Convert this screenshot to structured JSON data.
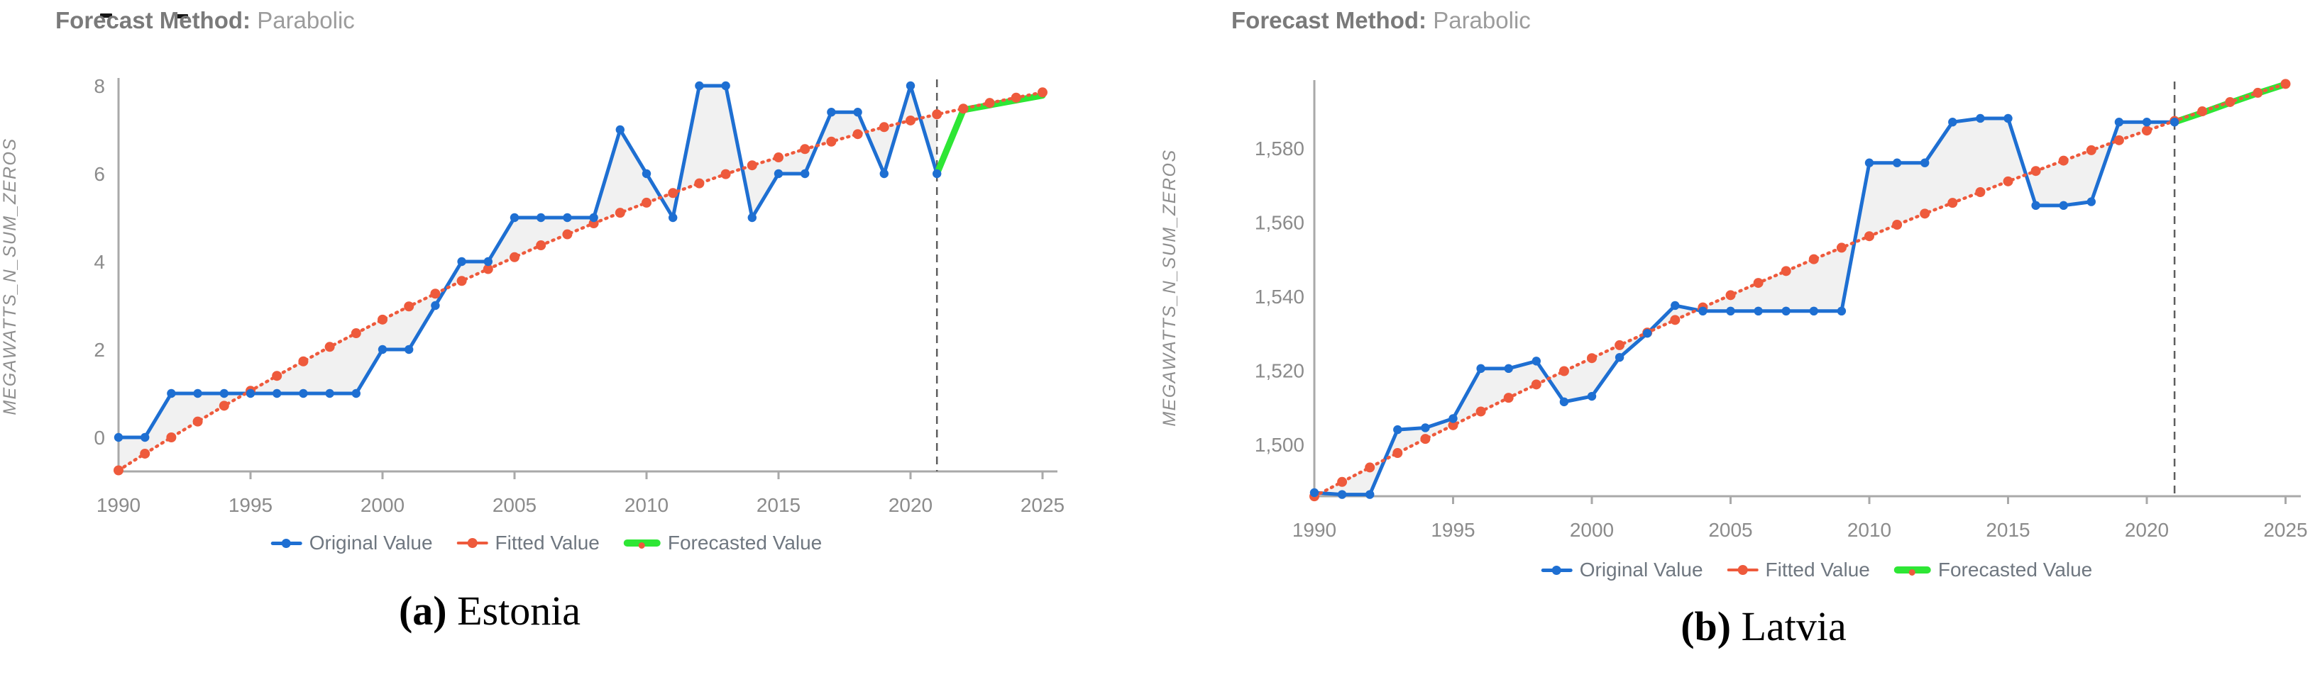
{
  "page": {
    "background": "#ffffff"
  },
  "colors": {
    "original": "#1E6FD2",
    "fitted": "#EE5A3C",
    "forecast": "#2EE635",
    "axis": "#A9A9A9",
    "band": "#D9D9D9",
    "tick_text": "#8B8B8B",
    "header_label": "#7A7A7A",
    "header_value": "#9C9C9C",
    "legend_text": "#6F7780",
    "dashed_line": "#5E5E5E",
    "ylabel_text": "#8F8F8F",
    "caption_text": "#000000"
  },
  "chart_data": [
    {
      "type": "line",
      "panel": "a",
      "header": {
        "label": "Forecast Method:",
        "value": "Parabolic"
      },
      "ylabel": "MEGAWATTS_N_SUM_ZEROS",
      "caption": {
        "index": "(a)",
        "name": "Estonia"
      },
      "legend_position": "bottom",
      "grid": false,
      "forecast_boundary_year": 2021,
      "xlim": [
        1990,
        2025.6
      ],
      "ylim": [
        -1.3,
        8.4
      ],
      "years": [
        1990,
        1991,
        1992,
        1993,
        1994,
        1995,
        1996,
        1997,
        1998,
        1999,
        2000,
        2001,
        2002,
        2003,
        2004,
        2005,
        2006,
        2007,
        2008,
        2009,
        2010,
        2011,
        2012,
        2013,
        2014,
        2015,
        2016,
        2017,
        2018,
        2019,
        2020,
        2021,
        2022,
        2023,
        2024,
        2025
      ],
      "xticks": [
        1990,
        1995,
        2000,
        2005,
        2010,
        2015,
        2020,
        2025
      ],
      "yticks": [
        {
          "value": 0,
          "label": "0"
        },
        {
          "value": 2,
          "label": "2"
        },
        {
          "value": 4,
          "label": "4"
        },
        {
          "value": 6,
          "label": "6"
        },
        {
          "value": 8,
          "label": "8"
        }
      ],
      "series": [
        {
          "name": "Original Value",
          "color_key": "original",
          "style": "solid-markers",
          "values": [
            0,
            0,
            1,
            1,
            1,
            1,
            1,
            1,
            1,
            1,
            2,
            2,
            3,
            4,
            4,
            5,
            5,
            5,
            5,
            7,
            6,
            5,
            8,
            8,
            5,
            6,
            6,
            7.4,
            7.4,
            6,
            8,
            6,
            null,
            null,
            null,
            null
          ]
        },
        {
          "name": "Fitted Value",
          "color_key": "fitted",
          "style": "dotted-markers",
          "values": [
            -0.75,
            -0.37,
            0.0,
            0.36,
            0.72,
            1.06,
            1.4,
            1.73,
            2.06,
            2.37,
            2.68,
            2.98,
            3.27,
            3.56,
            3.83,
            4.1,
            4.37,
            4.62,
            4.87,
            5.11,
            5.34,
            5.56,
            5.78,
            5.99,
            6.19,
            6.37,
            6.56,
            6.73,
            6.9,
            7.06,
            7.21,
            7.35,
            7.48,
            7.61,
            7.73,
            7.85
          ]
        },
        {
          "name": "Forecasted Value",
          "color_key": "forecast",
          "style": "thick-solid",
          "values": [
            null,
            null,
            null,
            null,
            null,
            null,
            null,
            null,
            null,
            null,
            null,
            null,
            null,
            null,
            null,
            null,
            null,
            null,
            null,
            null,
            null,
            null,
            null,
            null,
            null,
            null,
            null,
            null,
            null,
            null,
            null,
            6.0,
            7.45,
            7.56,
            7.67,
            7.78
          ]
        }
      ]
    },
    {
      "type": "line",
      "panel": "b",
      "header": {
        "label": "Forecast Method:",
        "value": "Parabolic"
      },
      "ylabel": "MEGAWATTS_N_SUM_ZEROS",
      "caption": {
        "index": "(b)",
        "name": "Latvia"
      },
      "legend_position": "bottom",
      "grid": false,
      "forecast_boundary_year": 2021,
      "xlim": [
        1990,
        2025.6
      ],
      "ylim": [
        1486,
        1599
      ],
      "years": [
        1990,
        1991,
        1992,
        1993,
        1994,
        1995,
        1996,
        1997,
        1998,
        1999,
        2000,
        2001,
        2002,
        2003,
        2004,
        2005,
        2006,
        2007,
        2008,
        2009,
        2010,
        2011,
        2012,
        2013,
        2014,
        2015,
        2016,
        2017,
        2018,
        2019,
        2020,
        2021,
        2022,
        2023,
        2024,
        2025
      ],
      "xticks": [
        1990,
        1995,
        2000,
        2005,
        2010,
        2015,
        2020,
        2025
      ],
      "yticks": [
        {
          "value": 1500,
          "label": "1,500"
        },
        {
          "value": 1520,
          "label": "1,520"
        },
        {
          "value": 1540,
          "label": "1,540"
        },
        {
          "value": 1560,
          "label": "1,560"
        },
        {
          "value": 1580,
          "label": "1,580"
        }
      ],
      "series": [
        {
          "name": "Original Value",
          "color_key": "original",
          "style": "solid-markers",
          "values": [
            1487,
            1486.5,
            1486.5,
            1504,
            1504.5,
            1507,
            1520.5,
            1520.5,
            1522.5,
            1511.5,
            1513,
            1523.5,
            1530,
            1537.5,
            1536,
            1536,
            1536,
            1536,
            1536,
            1536,
            1576,
            1576,
            1576,
            1587,
            1588,
            1588,
            1564.5,
            1564.5,
            1565.5,
            1587,
            1587,
            1587,
            null,
            null,
            null,
            null
          ]
        },
        {
          "name": "Fitted Value",
          "color_key": "fitted",
          "style": "dotted-markers",
          "values": [
            1486.0,
            1489.9,
            1493.8,
            1497.7,
            1501.5,
            1505.2,
            1508.9,
            1512.6,
            1516.2,
            1519.8,
            1523.3,
            1526.8,
            1530.2,
            1533.6,
            1537.0,
            1540.3,
            1543.6,
            1546.8,
            1550.0,
            1553.1,
            1556.2,
            1559.3,
            1562.3,
            1565.2,
            1568.1,
            1571.0,
            1573.8,
            1576.6,
            1579.4,
            1582.1,
            1584.7,
            1587.3,
            1589.9,
            1592.4,
            1594.9,
            1597.3
          ]
        },
        {
          "name": "Forecasted Value",
          "color_key": "forecast",
          "style": "thick-solid",
          "values": [
            null,
            null,
            null,
            null,
            null,
            null,
            null,
            null,
            null,
            null,
            null,
            null,
            null,
            null,
            null,
            null,
            null,
            null,
            null,
            null,
            null,
            null,
            null,
            null,
            null,
            null,
            null,
            null,
            null,
            null,
            null,
            1587,
            1589.5,
            1592.2,
            1594.8,
            1597.2
          ]
        }
      ]
    }
  ]
}
